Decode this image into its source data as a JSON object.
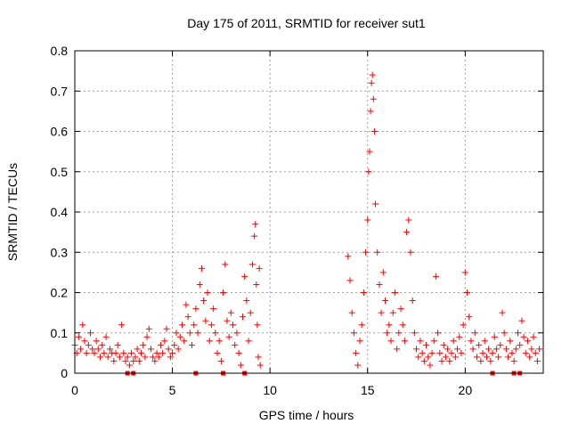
{
  "chart_data": {
    "type": "scatter",
    "title": "Day 175 of 2011, SRMTID for receiver sut1",
    "xlabel": "GPS time / hours",
    "ylabel": "SRMTID / TECUs",
    "xlim": [
      0,
      24
    ],
    "ylim": [
      0,
      0.8
    ],
    "x_ticks": [
      0,
      5,
      10,
      15,
      20
    ],
    "x_tick_labels": [
      "0",
      "5",
      "10",
      "15",
      "20"
    ],
    "y_ticks": [
      0,
      0.1,
      0.2,
      0.3,
      0.4,
      0.5,
      0.6,
      0.7,
      0.8
    ],
    "y_tick_labels": [
      "0",
      "0.1",
      "0.2",
      "0.3",
      "0.4",
      "0.5",
      "0.6",
      "0.7",
      "0.8"
    ],
    "grid": true,
    "marker": "+",
    "color": "#ff0000",
    "data_gap": [
      9.5,
      14.0
    ],
    "series": [
      {
        "name": "SRMTID",
        "points": [
          [
            0.0,
            0.07
          ],
          [
            0.1,
            0.05
          ],
          [
            0.2,
            0.09
          ],
          [
            0.3,
            0.06
          ],
          [
            0.4,
            0.12
          ],
          [
            0.5,
            0.08
          ],
          [
            0.6,
            0.05
          ],
          [
            0.7,
            0.07
          ],
          [
            0.8,
            0.1
          ],
          [
            0.9,
            0.06
          ],
          [
            1.0,
            0.05
          ],
          [
            1.1,
            0.08
          ],
          [
            1.2,
            0.06
          ],
          [
            1.3,
            0.04
          ],
          [
            1.4,
            0.07
          ],
          [
            1.5,
            0.05
          ],
          [
            1.6,
            0.09
          ],
          [
            1.7,
            0.04
          ],
          [
            1.8,
            0.06
          ],
          [
            1.9,
            0.05
          ],
          [
            2.0,
            0.03
          ],
          [
            2.1,
            0.05
          ],
          [
            2.2,
            0.07
          ],
          [
            2.3,
            0.04
          ],
          [
            2.4,
            0.12
          ],
          [
            2.5,
            0.05
          ],
          [
            2.6,
            0.03
          ],
          [
            2.7,
            0.04
          ],
          [
            2.8,
            0.02
          ],
          [
            2.9,
            0.05
          ],
          [
            3.0,
            0.03
          ],
          [
            3.1,
            0.04
          ],
          [
            3.2,
            0.06
          ],
          [
            3.3,
            0.03
          ],
          [
            3.4,
            0.05
          ],
          [
            3.5,
            0.07
          ],
          [
            3.6,
            0.04
          ],
          [
            3.7,
            0.09
          ],
          [
            3.8,
            0.11
          ],
          [
            3.9,
            0.06
          ],
          [
            4.0,
            0.04
          ],
          [
            4.1,
            0.03
          ],
          [
            4.2,
            0.05
          ],
          [
            4.3,
            0.04
          ],
          [
            4.4,
            0.07
          ],
          [
            4.5,
            0.05
          ],
          [
            4.6,
            0.08
          ],
          [
            4.7,
            0.11
          ],
          [
            4.8,
            0.06
          ],
          [
            4.9,
            0.04
          ],
          [
            5.0,
            0.05
          ],
          [
            5.1,
            0.07
          ],
          [
            5.2,
            0.1
          ],
          [
            5.3,
            0.06
          ],
          [
            5.4,
            0.09
          ],
          [
            5.5,
            0.12
          ],
          [
            5.6,
            0.08
          ],
          [
            5.7,
            0.17
          ],
          [
            5.8,
            0.14
          ],
          [
            5.9,
            0.1
          ],
          [
            6.0,
            0.07
          ],
          [
            6.1,
            0.12
          ],
          [
            6.2,
            0.16
          ],
          [
            6.3,
            0.1
          ],
          [
            6.4,
            0.22
          ],
          [
            6.5,
            0.26
          ],
          [
            6.6,
            0.18
          ],
          [
            6.7,
            0.13
          ],
          [
            6.8,
            0.2
          ],
          [
            6.9,
            0.08
          ],
          [
            7.0,
            0.12
          ],
          [
            7.1,
            0.16
          ],
          [
            7.2,
            0.1
          ],
          [
            7.3,
            0.05
          ],
          [
            7.4,
            0.08
          ],
          [
            7.5,
            0.03
          ],
          [
            7.6,
            0.2
          ],
          [
            7.7,
            0.27
          ],
          [
            7.8,
            0.13
          ],
          [
            7.9,
            0.09
          ],
          [
            8.0,
            0.15
          ],
          [
            8.1,
            0.12
          ],
          [
            8.2,
            0.07
          ],
          [
            8.3,
            0.1
          ],
          [
            8.4,
            0.05
          ],
          [
            8.5,
            0.02
          ],
          [
            8.6,
            0.14
          ],
          [
            8.7,
            0.24
          ],
          [
            8.8,
            0.18
          ],
          [
            8.9,
            0.08
          ],
          [
            9.0,
            0.15
          ],
          [
            9.1,
            0.27
          ],
          [
            9.2,
            0.34
          ],
          [
            9.25,
            0.37
          ],
          [
            9.3,
            0.22
          ],
          [
            9.35,
            0.12
          ],
          [
            9.4,
            0.04
          ],
          [
            9.45,
            0.26
          ],
          [
            9.5,
            0.02
          ],
          [
            14.0,
            0.29
          ],
          [
            14.1,
            0.23
          ],
          [
            14.2,
            0.15
          ],
          [
            14.3,
            0.1
          ],
          [
            14.4,
            0.05
          ],
          [
            14.5,
            0.02
          ],
          [
            14.6,
            0.08
          ],
          [
            14.7,
            0.12
          ],
          [
            14.8,
            0.2
          ],
          [
            14.9,
            0.3
          ],
          [
            15.0,
            0.38
          ],
          [
            15.05,
            0.5
          ],
          [
            15.1,
            0.55
          ],
          [
            15.15,
            0.65
          ],
          [
            15.2,
            0.72
          ],
          [
            15.25,
            0.74
          ],
          [
            15.3,
            0.68
          ],
          [
            15.35,
            0.6
          ],
          [
            15.4,
            0.42
          ],
          [
            15.5,
            0.3
          ],
          [
            15.6,
            0.22
          ],
          [
            15.7,
            0.15
          ],
          [
            15.8,
            0.25
          ],
          [
            15.9,
            0.18
          ],
          [
            16.0,
            0.1
          ],
          [
            16.1,
            0.12
          ],
          [
            16.2,
            0.08
          ],
          [
            16.3,
            0.15
          ],
          [
            16.4,
            0.2
          ],
          [
            16.5,
            0.06
          ],
          [
            16.6,
            0.1
          ],
          [
            16.7,
            0.16
          ],
          [
            16.8,
            0.12
          ],
          [
            16.9,
            0.08
          ],
          [
            17.0,
            0.35
          ],
          [
            17.1,
            0.38
          ],
          [
            17.2,
            0.3
          ],
          [
            17.3,
            0.18
          ],
          [
            17.4,
            0.1
          ],
          [
            17.5,
            0.06
          ],
          [
            17.6,
            0.04
          ],
          [
            17.7,
            0.08
          ],
          [
            17.8,
            0.05
          ],
          [
            17.9,
            0.03
          ],
          [
            18.0,
            0.07
          ],
          [
            18.1,
            0.04
          ],
          [
            18.2,
            0.02
          ],
          [
            18.3,
            0.05
          ],
          [
            18.4,
            0.08
          ],
          [
            18.5,
            0.24
          ],
          [
            18.6,
            0.1
          ],
          [
            18.7,
            0.05
          ],
          [
            18.8,
            0.03
          ],
          [
            18.9,
            0.07
          ],
          [
            19.0,
            0.04
          ],
          [
            19.1,
            0.06
          ],
          [
            19.2,
            0.03
          ],
          [
            19.3,
            0.05
          ],
          [
            19.4,
            0.08
          ],
          [
            19.5,
            0.04
          ],
          [
            19.6,
            0.06
          ],
          [
            19.7,
            0.09
          ],
          [
            19.8,
            0.05
          ],
          [
            19.9,
            0.12
          ],
          [
            20.0,
            0.25
          ],
          [
            20.1,
            0.2
          ],
          [
            20.2,
            0.14
          ],
          [
            20.3,
            0.08
          ],
          [
            20.4,
            0.06
          ],
          [
            20.5,
            0.1
          ],
          [
            20.6,
            0.04
          ],
          [
            20.7,
            0.07
          ],
          [
            20.8,
            0.03
          ],
          [
            20.9,
            0.05
          ],
          [
            21.0,
            0.08
          ],
          [
            21.1,
            0.04
          ],
          [
            21.2,
            0.06
          ],
          [
            21.3,
            0.03
          ],
          [
            21.4,
            0.05
          ],
          [
            21.5,
            0.09
          ],
          [
            21.6,
            0.06
          ],
          [
            21.7,
            0.04
          ],
          [
            21.8,
            0.07
          ],
          [
            21.9,
            0.15
          ],
          [
            22.0,
            0.1
          ],
          [
            22.1,
            0.06
          ],
          [
            22.2,
            0.04
          ],
          [
            22.3,
            0.08
          ],
          [
            22.4,
            0.05
          ],
          [
            22.5,
            0.03
          ],
          [
            22.6,
            0.06
          ],
          [
            22.7,
            0.1
          ],
          [
            22.8,
            0.07
          ],
          [
            22.9,
            0.13
          ],
          [
            23.0,
            0.09
          ],
          [
            23.1,
            0.05
          ],
          [
            23.2,
            0.08
          ],
          [
            23.3,
            0.04
          ],
          [
            23.4,
            0.06
          ],
          [
            23.5,
            0.09
          ],
          [
            23.6,
            0.05
          ],
          [
            23.7,
            0.03
          ],
          [
            23.8,
            0.06
          ]
        ]
      }
    ],
    "zero_level_markers": [
      2.7,
      3.0,
      6.2,
      7.6,
      8.7,
      21.4,
      22.5,
      22.8
    ]
  }
}
